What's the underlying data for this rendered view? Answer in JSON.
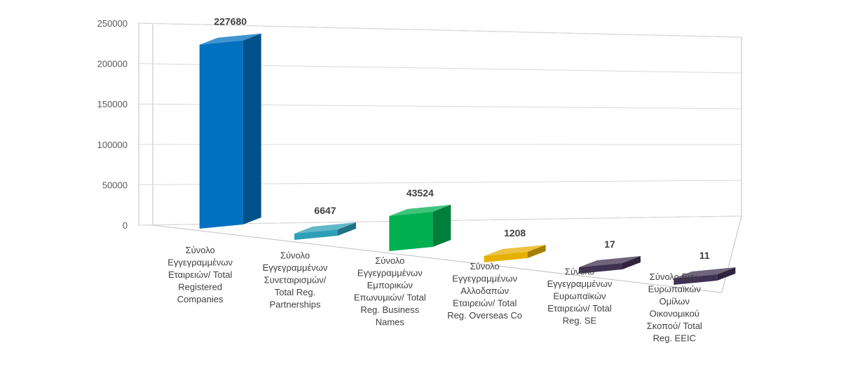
{
  "chart_data": {
    "type": "bar",
    "title": "",
    "xlabel": "",
    "ylabel": "",
    "ylim": [
      0,
      250000
    ],
    "yticks": [
      "0",
      "50000",
      "100000",
      "150000",
      "200000",
      "250000"
    ],
    "grid": true,
    "legend": "none",
    "categories": [
      [
        "Σύνολο",
        "Εγγεγραμμένων",
        "Εταιρειών/ Total",
        "Registered",
        "Companies"
      ],
      [
        "Σύνολο",
        "Εγγεγραμμένων",
        "Συνεταιρισμών/",
        "Total Reg.",
        "Partnerships"
      ],
      [
        "Σύνολο",
        "Εγγεγραμμένων",
        "Εμπορικών",
        "Επωνυμιών/ Total",
        "Reg. Business",
        "Names"
      ],
      [
        "Σύνολο",
        "Εγγεγραμμένων",
        "Αλλοδαπών",
        "Εταιρειών/ Total",
        "Reg. Overseas Co"
      ],
      [
        "Σύνολο",
        "Εγγεγραμμένων",
        "Ευρωπαϊκών",
        "Εταιρειών/ Total",
        "Reg. SE"
      ],
      [
        "Σύνολο Εγγ.",
        "Ευρωπαϊκών",
        "Ομίλων",
        "Οικονομικού",
        "Σκοπού/ Total",
        "Reg. EEIC"
      ]
    ],
    "values": [
      227680,
      6647,
      43524,
      1208,
      17,
      11
    ],
    "data_labels": [
      "227680",
      "6647",
      "43524",
      "1208",
      "17",
      "11"
    ],
    "colors": [
      "#0070c0",
      "#2e9fb8",
      "#00b050",
      "#e6b000",
      "#403152",
      "#403152"
    ]
  }
}
